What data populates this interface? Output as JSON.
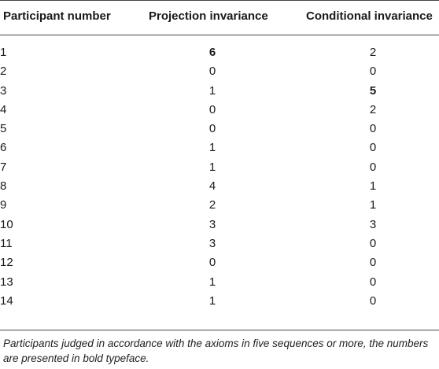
{
  "table": {
    "headers": [
      "Participant number",
      "Projection invariance",
      "Conditional invariance"
    ],
    "rows": [
      {
        "participant": "1",
        "projection": "6",
        "conditional": "2",
        "bold": "projection"
      },
      {
        "participant": "2",
        "projection": "0",
        "conditional": "0"
      },
      {
        "participant": "3",
        "projection": "1",
        "conditional": "5",
        "bold": "conditional"
      },
      {
        "participant": "4",
        "projection": "0",
        "conditional": "2"
      },
      {
        "participant": "5",
        "projection": "0",
        "conditional": "0"
      },
      {
        "participant": "6",
        "projection": "1",
        "conditional": "0"
      },
      {
        "participant": "7",
        "projection": "1",
        "conditional": "0"
      },
      {
        "participant": "8",
        "projection": "4",
        "conditional": "1"
      },
      {
        "participant": "9",
        "projection": "2",
        "conditional": "1"
      },
      {
        "participant": "10",
        "projection": "3",
        "conditional": "3"
      },
      {
        "participant": "11",
        "projection": "3",
        "conditional": "0"
      },
      {
        "participant": "12",
        "projection": "0",
        "conditional": "0"
      },
      {
        "participant": "13",
        "projection": "1",
        "conditional": "0"
      },
      {
        "participant": "14",
        "projection": "1",
        "conditional": "0"
      }
    ],
    "footnote": "Participants judged in accordance with the axioms in five sequences or more, the numbers are presented in bold typeface."
  }
}
